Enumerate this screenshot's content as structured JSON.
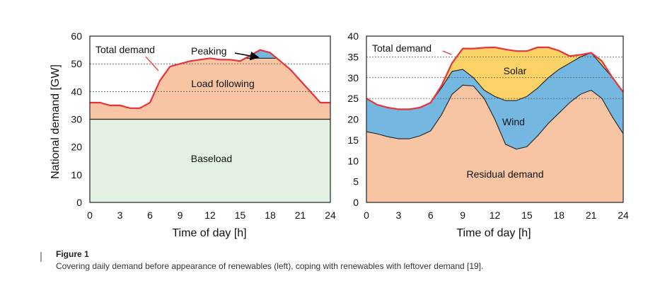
{
  "chart_data": [
    {
      "type": "area",
      "ylabel": "National demand [GW]",
      "xlabel": "Time of day [h]",
      "xlim": [
        0,
        24
      ],
      "ylim": [
        0,
        60
      ],
      "xticks": [
        0,
        3,
        6,
        9,
        12,
        15,
        18,
        21,
        24
      ],
      "yticks": [
        0,
        10,
        20,
        30,
        40,
        50,
        60
      ],
      "hgrid": [
        40,
        50
      ],
      "baseload_level": 30,
      "peaking_cap": 52,
      "colors": {
        "baseload": "#e2f1e1",
        "load_following": "#f8c5a4",
        "peaking": "#74b7e0",
        "total_line": "#e8333b"
      },
      "series": [
        {
          "name": "Total demand",
          "x": [
            0,
            1,
            2,
            3,
            4,
            5,
            6,
            7,
            8,
            9,
            10,
            11,
            12,
            13,
            14,
            15,
            16,
            17,
            18,
            19,
            20,
            21,
            22,
            23,
            24
          ],
          "values": [
            36,
            36,
            35,
            35,
            34,
            34,
            36,
            44,
            49,
            50,
            51,
            51.5,
            52,
            51.5,
            51.5,
            51,
            53,
            55,
            54,
            51,
            48,
            44,
            40,
            36,
            36
          ]
        }
      ],
      "labels": {
        "total": "Total demand",
        "peaking": "Peaking",
        "load_following": "Load following",
        "baseload": "Baseload"
      }
    },
    {
      "type": "area",
      "xlabel": "Time of day [h]",
      "xlim": [
        0,
        24
      ],
      "ylim": [
        0,
        40
      ],
      "xticks": [
        0,
        3,
        6,
        9,
        12,
        15,
        18,
        21,
        24
      ],
      "yticks": [
        0,
        5,
        10,
        15,
        20,
        25,
        30,
        35,
        40
      ],
      "hgrid": [
        25,
        30,
        35
      ],
      "colors": {
        "residual": "#f8c5a4",
        "wind": "#74b7e0",
        "solar": "#fbd265",
        "total_line": "#e8333b"
      },
      "series": [
        {
          "name": "Total demand",
          "x": [
            0,
            1,
            2,
            3,
            4,
            5,
            6,
            7,
            8,
            9,
            10,
            11,
            12,
            13,
            14,
            15,
            16,
            17,
            18,
            19,
            20,
            21,
            22,
            23,
            24
          ],
          "values": [
            25,
            23.5,
            22.8,
            22.4,
            22.4,
            22.8,
            24,
            28,
            33.5,
            37,
            37,
            37.2,
            37.3,
            36.8,
            36.4,
            36.4,
            37.3,
            37.3,
            36.5,
            35.2,
            35.5,
            36,
            34,
            30,
            26.5
          ]
        },
        {
          "name": "Residual demand + Wind",
          "x": [
            0,
            1,
            2,
            3,
            4,
            5,
            6,
            7,
            8,
            9,
            10,
            11,
            12,
            13,
            14,
            15,
            16,
            17,
            18,
            19,
            20,
            21,
            22,
            23,
            24
          ],
          "values": [
            25,
            23.5,
            22.8,
            22.4,
            22.4,
            22.8,
            24,
            27.5,
            31.5,
            32,
            30,
            27,
            25.5,
            24.5,
            24.5,
            25.5,
            27.5,
            30,
            32,
            33.5,
            35,
            36,
            33,
            30,
            26.5
          ]
        },
        {
          "name": "Residual demand",
          "x": [
            0,
            1,
            2,
            3,
            4,
            5,
            6,
            7,
            8,
            9,
            10,
            11,
            12,
            13,
            14,
            15,
            16,
            17,
            18,
            19,
            20,
            21,
            22,
            23,
            24
          ],
          "values": [
            17,
            16.5,
            15.8,
            15.3,
            15.3,
            16,
            17.2,
            21,
            26,
            28.2,
            28,
            25,
            20,
            14,
            12.8,
            13.4,
            16,
            19,
            21.5,
            24,
            26,
            27,
            25,
            20.5,
            16.5
          ]
        }
      ],
      "labels": {
        "total": "Total demand",
        "solar": "Solar",
        "wind": "Wind",
        "residual": "Residual demand"
      }
    }
  ],
  "caption": {
    "title": "Figure 1",
    "text": "Covering daily demand before appearance of renewables (left), coping with renewables with leftover demand [19]."
  }
}
